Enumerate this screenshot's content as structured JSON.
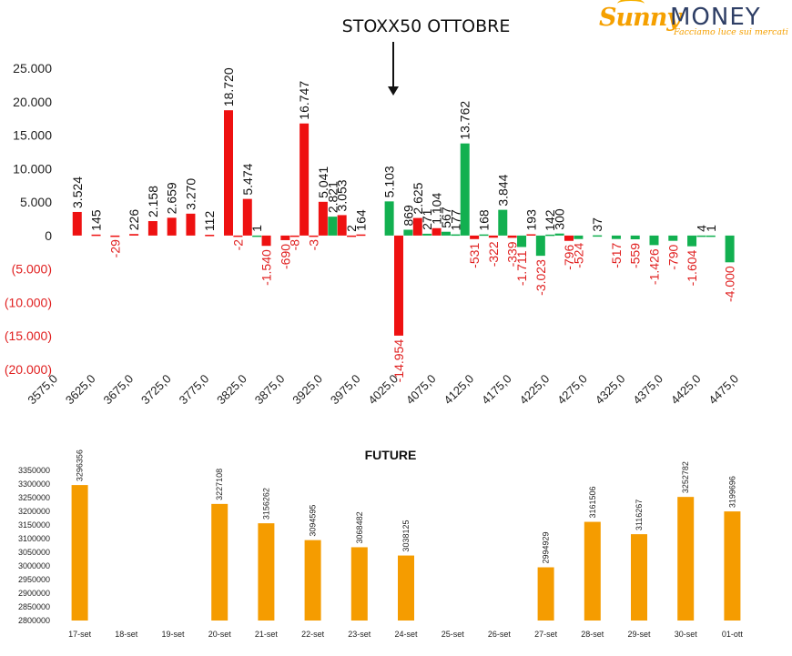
{
  "logo": {
    "name_part1": "Sunny",
    "name_part2": "MONEY",
    "tagline": "Facciamo luce sui mercati"
  },
  "chart_data": [
    {
      "type": "bar",
      "title": "STOXX50 OTTOBRE",
      "xlim": [
        3575,
        4475
      ],
      "ylim": [
        -20000,
        25000
      ],
      "x_ticks": [
        "3575,0",
        "3625,0",
        "3675,0",
        "3725,0",
        "3775,0",
        "3825,0",
        "3875,0",
        "3925,0",
        "3975,0",
        "4025,0",
        "4075,0",
        "4125,0",
        "4175,0",
        "4225,0",
        "4275,0",
        "4325,0",
        "4375,0",
        "4425,0",
        "4475,0"
      ],
      "y_ticks": [
        "25.000",
        "20.000",
        "15.000",
        "10.000",
        "5.000",
        "0",
        "(5.000)",
        "(10.000)",
        "(15.000)",
        "(20.000)"
      ],
      "y_tick_values": [
        25000,
        20000,
        15000,
        10000,
        5000,
        0,
        -5000,
        -10000,
        -15000,
        -20000
      ],
      "annotation": "arrow pointing down at strike 4025",
      "series": [
        {
          "color": "#ee1111",
          "points": [
            {
              "x": 3600,
              "y": 3524,
              "label": "3.524"
            },
            {
              "x": 3625,
              "y": 145,
              "label": "145"
            },
            {
              "x": 3650,
              "y": -29,
              "label": "-29"
            },
            {
              "x": 3675,
              "y": 226,
              "label": "226"
            },
            {
              "x": 3700,
              "y": 2158,
              "label": "2.158"
            },
            {
              "x": 3725,
              "y": 2659,
              "label": "2.659"
            },
            {
              "x": 3750,
              "y": 3270,
              "label": "3.270"
            },
            {
              "x": 3775,
              "y": 112,
              "label": "112"
            },
            {
              "x": 3800,
              "y": 18720,
              "label": "18.720"
            },
            {
              "x": 3812.5,
              "y": -2,
              "label": "-2"
            },
            {
              "x": 3825,
              "y": 5474,
              "label": "5.474"
            },
            {
              "x": 3850,
              "y": -1540,
              "label": "-1.540"
            },
            {
              "x": 3875,
              "y": -690,
              "label": "-690"
            },
            {
              "x": 3887.5,
              "y": -8,
              "label": "-8"
            },
            {
              "x": 3900,
              "y": 16747,
              "label": "16.747"
            },
            {
              "x": 3912.5,
              "y": -3,
              "label": "-3"
            },
            {
              "x": 3925,
              "y": 5041,
              "label": "5.041"
            },
            {
              "x": 3950,
              "y": 3053,
              "label": "3.053"
            },
            {
              "x": 3962.5,
              "y": 2,
              "label": "2"
            },
            {
              "x": 3975,
              "y": 164,
              "label": "164"
            },
            {
              "x": 4025,
              "y": -14954,
              "label": "-14.954"
            },
            {
              "x": 4050,
              "y": 2625,
              "label": "2.625"
            },
            {
              "x": 4075,
              "y": 1104,
              "label": "1.104"
            },
            {
              "x": 4125,
              "y": -531,
              "label": "-531"
            },
            {
              "x": 4150,
              "y": -322,
              "label": "-322"
            },
            {
              "x": 4175,
              "y": -339,
              "label": "-339"
            },
            {
              "x": 4200,
              "y": 193,
              "label": "193"
            },
            {
              "x": 4250,
              "y": -796,
              "label": "-796"
            }
          ]
        },
        {
          "color": "#12b050",
          "points": [
            {
              "x": 3837.5,
              "y": 1,
              "label": "1"
            },
            {
              "x": 3937.5,
              "y": 2821,
              "label": "2.821"
            },
            {
              "x": 4012.5,
              "y": 5103,
              "label": "5.103"
            },
            {
              "x": 4037.5,
              "y": 869,
              "label": "869"
            },
            {
              "x": 4062.5,
              "y": 271,
              "label": "271"
            },
            {
              "x": 4087.5,
              "y": 567,
              "label": "567"
            },
            {
              "x": 4100,
              "y": 177,
              "label": "177"
            },
            {
              "x": 4112.5,
              "y": 13762,
              "label": "13.762"
            },
            {
              "x": 4137.5,
              "y": 168,
              "label": "168"
            },
            {
              "x": 4162.5,
              "y": 3844,
              "label": "3.844"
            },
            {
              "x": 4187.5,
              "y": -1711,
              "label": "-1.711"
            },
            {
              "x": 4212.5,
              "y": -3023,
              "label": "-3.023"
            },
            {
              "x": 4225,
              "y": 142,
              "label": "142"
            },
            {
              "x": 4237.5,
              "y": 300,
              "label": "300"
            },
            {
              "x": 4262.5,
              "y": -524,
              "label": "-524"
            },
            {
              "x": 4287.5,
              "y": 37,
              "label": "37"
            },
            {
              "x": 4312.5,
              "y": -517,
              "label": "-517"
            },
            {
              "x": 4337.5,
              "y": -559,
              "label": "-559"
            },
            {
              "x": 4362.5,
              "y": -1426,
              "label": "-1.426"
            },
            {
              "x": 4387.5,
              "y": -790,
              "label": "-790"
            },
            {
              "x": 4412.5,
              "y": -1604,
              "label": "-1.604"
            },
            {
              "x": 4425,
              "y": 4,
              "label": "4"
            },
            {
              "x": 4437.5,
              "y": 1,
              "label": "1"
            },
            {
              "x": 4462.5,
              "y": -4000,
              "label": "-4.000"
            }
          ]
        }
      ]
    },
    {
      "type": "bar",
      "title": "FUTURE",
      "color": "#f59c00",
      "ylim": [
        2800000,
        3350000
      ],
      "y_ticks": [
        "3350000",
        "3300000",
        "3250000",
        "3200000",
        "3150000",
        "3100000",
        "3050000",
        "3000000",
        "2950000",
        "2900000",
        "2850000",
        "2800000"
      ],
      "y_tick_values": [
        3350000,
        3300000,
        3250000,
        3200000,
        3150000,
        3100000,
        3050000,
        3000000,
        2950000,
        2900000,
        2850000,
        2800000
      ],
      "categories": [
        "17-set",
        "18-set",
        "19-set",
        "20-set",
        "21-set",
        "22-set",
        "23-set",
        "24-set",
        "25-set",
        "26-set",
        "27-set",
        "28-set",
        "29-set",
        "30-set",
        "01-ott"
      ],
      "values": [
        3296356,
        null,
        null,
        3227108,
        3156262,
        3094595,
        3068482,
        3038125,
        null,
        null,
        2994929,
        3161506,
        3116267,
        3252782,
        3199696
      ],
      "labels": [
        "3296356",
        "",
        "",
        "3227108",
        "3156262",
        "3094595",
        "3068482",
        "3038125",
        "",
        "",
        "2994929",
        "3161506",
        "3116267",
        "3252782",
        "3199696"
      ]
    }
  ]
}
